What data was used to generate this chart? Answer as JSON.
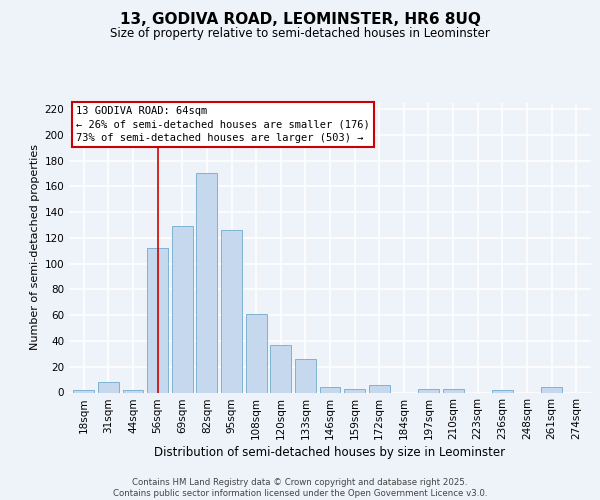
{
  "title": "13, GODIVA ROAD, LEOMINSTER, HR6 8UQ",
  "subtitle": "Size of property relative to semi-detached houses in Leominster",
  "xlabel": "Distribution of semi-detached houses by size in Leominster",
  "ylabel": "Number of semi-detached properties",
  "categories": [
    "18sqm",
    "31sqm",
    "44sqm",
    "56sqm",
    "69sqm",
    "82sqm",
    "95sqm",
    "108sqm",
    "120sqm",
    "133sqm",
    "146sqm",
    "159sqm",
    "172sqm",
    "184sqm",
    "197sqm",
    "210sqm",
    "223sqm",
    "236sqm",
    "248sqm",
    "261sqm",
    "274sqm"
  ],
  "values": [
    2,
    8,
    2,
    112,
    129,
    170,
    126,
    61,
    37,
    26,
    4,
    3,
    6,
    0,
    3,
    3,
    0,
    2,
    0,
    4,
    0
  ],
  "bar_color": "#c5d8ed",
  "bar_edge_color": "#7fb3d3",
  "subject_bar_index": 3,
  "smaller_pct": 26,
  "smaller_count": 176,
  "larger_pct": 73,
  "larger_count": 503,
  "ylim": [
    0,
    225
  ],
  "yticks": [
    0,
    20,
    40,
    60,
    80,
    100,
    120,
    140,
    160,
    180,
    200,
    220
  ],
  "background_color": "#eef2f9",
  "grid_color": "#ffffff",
  "vline_color": "#cc0000",
  "box_edge_color": "#cc0000",
  "footer_line1": "Contains HM Land Registry data © Crown copyright and database right 2025.",
  "footer_line2": "Contains public sector information licensed under the Open Government Licence v3.0."
}
